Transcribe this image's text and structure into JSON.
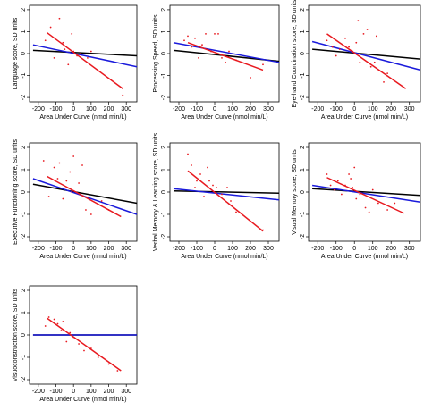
{
  "chart_data": [
    {
      "type": "scatter",
      "xlabel": "Area Under Curve (nmol min/L)",
      "ylabel": "Language score, SD units",
      "xlim": [
        -250,
        360
      ],
      "ylim": [
        -2.2,
        2.2
      ],
      "xticks": [
        -200,
        -100,
        0,
        100,
        200,
        300
      ],
      "yticks": [
        -2,
        -1,
        0,
        1,
        2
      ],
      "points": [
        [
          -160,
          0.6
        ],
        [
          -130,
          1.2
        ],
        [
          -110,
          -0.2
        ],
        [
          -80,
          1.6
        ],
        [
          -60,
          0.5
        ],
        [
          -50,
          0.2
        ],
        [
          -30,
          -0.5
        ],
        [
          -10,
          0.9
        ],
        [
          0,
          0.1
        ],
        [
          20,
          -0.1
        ],
        [
          40,
          0.0
        ],
        [
          80,
          -0.2
        ],
        [
          100,
          0.1
        ],
        [
          280,
          -1.9
        ]
      ],
      "series": [
        {
          "color": "#e8191f",
          "line": [
            [
              -150,
              0.95
            ],
            [
              280,
              -1.6
            ]
          ]
        },
        {
          "color": "#1a1adb",
          "line": [
            [
              -230,
              0.4
            ],
            [
              360,
              -0.6
            ]
          ]
        },
        {
          "color": "#000000",
          "line": [
            [
              -230,
              0.15
            ],
            [
              360,
              -0.1
            ]
          ]
        }
      ]
    },
    {
      "type": "scatter",
      "xlabel": "Area Under Curve (nmol min/L)",
      "ylabel": "Processing Speed, SD units",
      "xlim": [
        -250,
        360
      ],
      "ylim": [
        -2.2,
        2.2
      ],
      "xticks": [
        -200,
        -100,
        0,
        100,
        200,
        300
      ],
      "yticks": [
        -2,
        -1,
        0,
        1,
        2
      ],
      "points": [
        [
          -170,
          0.6
        ],
        [
          -150,
          0.8
        ],
        [
          -130,
          0.3
        ],
        [
          -110,
          0.7
        ],
        [
          -90,
          -0.2
        ],
        [
          -70,
          0.4
        ],
        [
          -50,
          0.9
        ],
        [
          -20,
          0.1
        ],
        [
          0,
          0.9
        ],
        [
          20,
          0.9
        ],
        [
          40,
          -0.2
        ],
        [
          60,
          -0.4
        ],
        [
          80,
          0.1
        ],
        [
          120,
          -0.3
        ],
        [
          200,
          -1.1
        ],
        [
          270,
          -0.5
        ]
      ],
      "series": [
        {
          "color": "#e8191f",
          "line": [
            [
              -150,
              0.5
            ],
            [
              270,
              -0.75
            ]
          ]
        },
        {
          "color": "#1a1adb",
          "line": [
            [
              -230,
              0.5
            ],
            [
              360,
              -0.4
            ]
          ]
        },
        {
          "color": "#000000",
          "line": [
            [
              -230,
              0.15
            ],
            [
              360,
              -0.35
            ]
          ]
        }
      ]
    },
    {
      "type": "scatter",
      "xlabel": "Area Under Curve (nmol min/L)",
      "ylabel": "Eye-hand Coordination score, SD units",
      "xlim": [
        -250,
        360
      ],
      "ylim": [
        -2.2,
        2.2
      ],
      "xticks": [
        -200,
        -100,
        0,
        100,
        200,
        300
      ],
      "yticks": [
        -2,
        -1,
        0,
        1,
        2
      ],
      "points": [
        [
          -150,
          0.6
        ],
        [
          -120,
          0.3
        ],
        [
          -100,
          -0.1
        ],
        [
          -80,
          0.2
        ],
        [
          -50,
          0.7
        ],
        [
          -30,
          0.3
        ],
        [
          -10,
          0.1
        ],
        [
          10,
          0.5
        ],
        [
          20,
          1.5
        ],
        [
          30,
          -0.4
        ],
        [
          50,
          0.9
        ],
        [
          70,
          1.1
        ],
        [
          90,
          -0.6
        ],
        [
          110,
          -0.4
        ],
        [
          120,
          0.8
        ],
        [
          160,
          -1.3
        ],
        [
          180,
          -0.9
        ]
      ],
      "series": [
        {
          "color": "#e8191f",
          "line": [
            [
              -150,
              0.9
            ],
            [
              280,
              -1.6
            ]
          ]
        },
        {
          "color": "#1a1adb",
          "line": [
            [
              -230,
              0.55
            ],
            [
              360,
              -0.75
            ]
          ]
        },
        {
          "color": "#000000",
          "line": [
            [
              -230,
              0.2
            ],
            [
              360,
              -0.25
            ]
          ]
        }
      ]
    },
    {
      "type": "scatter",
      "xlabel": "Area Under Curve (nmol min/L)",
      "ylabel": "Executive Functioning score, SD units",
      "xlim": [
        -250,
        360
      ],
      "ylim": [
        -2.2,
        2.2
      ],
      "xticks": [
        -200,
        -100,
        0,
        100,
        200,
        300
      ],
      "yticks": [
        -2,
        -1,
        0,
        1,
        2
      ],
      "points": [
        [
          -170,
          1.4
        ],
        [
          -150,
          0.2
        ],
        [
          -140,
          -0.2
        ],
        [
          -110,
          1.1
        ],
        [
          -90,
          0.6
        ],
        [
          -80,
          1.3
        ],
        [
          -60,
          -0.3
        ],
        [
          -40,
          0.5
        ],
        [
          -20,
          0.9
        ],
        [
          -10,
          0.0
        ],
        [
          0,
          1.6
        ],
        [
          30,
          0.4
        ],
        [
          50,
          1.2
        ],
        [
          70,
          -0.8
        ],
        [
          100,
          -1.0
        ],
        [
          160,
          -0.4
        ],
        [
          200,
          -0.8
        ]
      ],
      "series": [
        {
          "color": "#e8191f",
          "line": [
            [
              -150,
              0.7
            ],
            [
              270,
              -1.1
            ]
          ]
        },
        {
          "color": "#1a1adb",
          "line": [
            [
              -230,
              0.6
            ],
            [
              360,
              -1.0
            ]
          ]
        },
        {
          "color": "#000000",
          "line": [
            [
              -230,
              0.35
            ],
            [
              360,
              -0.5
            ]
          ]
        }
      ]
    },
    {
      "type": "scatter",
      "xlabel": "Area Under Curve (nmol min/L)",
      "ylabel": "Verbal Memory & Learning score, SD units",
      "xlim": [
        -250,
        360
      ],
      "ylim": [
        -2.2,
        2.2
      ],
      "xticks": [
        -200,
        -100,
        0,
        100,
        200,
        300
      ],
      "yticks": [
        -2,
        -1,
        0,
        1,
        2
      ],
      "points": [
        [
          -150,
          1.7
        ],
        [
          -130,
          1.2
        ],
        [
          -110,
          0.2
        ],
        [
          -100,
          0.5
        ],
        [
          -80,
          0.8
        ],
        [
          -60,
          -0.2
        ],
        [
          -40,
          1.1
        ],
        [
          -30,
          0.5
        ],
        [
          -10,
          0.3
        ],
        [
          10,
          0.2
        ],
        [
          40,
          -0.1
        ],
        [
          70,
          0.2
        ],
        [
          90,
          -0.4
        ],
        [
          120,
          -0.9
        ],
        [
          270,
          -1.7
        ]
      ],
      "series": [
        {
          "color": "#e8191f",
          "line": [
            [
              -150,
              0.95
            ],
            [
              270,
              -1.75
            ]
          ]
        },
        {
          "color": "#1a1adb",
          "line": [
            [
              -230,
              0.15
            ],
            [
              360,
              -0.35
            ]
          ]
        },
        {
          "color": "#000000",
          "line": [
            [
              -230,
              0.05
            ],
            [
              360,
              -0.05
            ]
          ]
        }
      ]
    },
    {
      "type": "scatter",
      "xlabel": "Area Under Curve (nmol min/L)",
      "ylabel": "Visual Memory score, SD units",
      "xlim": [
        -250,
        360
      ],
      "ylim": [
        -2.2,
        2.2
      ],
      "xticks": [
        -200,
        -100,
        0,
        100,
        200,
        300
      ],
      "yticks": [
        -2,
        -1,
        0,
        1,
        2
      ],
      "points": [
        [
          -150,
          0.8
        ],
        [
          -130,
          0.3
        ],
        [
          -110,
          0.1
        ],
        [
          -90,
          0.5
        ],
        [
          -70,
          -0.1
        ],
        [
          -50,
          0.3
        ],
        [
          -30,
          0.8
        ],
        [
          -20,
          0.6
        ],
        [
          -10,
          0.2
        ],
        [
          0,
          1.1
        ],
        [
          10,
          -0.3
        ],
        [
          30,
          -0.1
        ],
        [
          60,
          -0.7
        ],
        [
          80,
          -0.9
        ],
        [
          100,
          0.1
        ],
        [
          130,
          -0.5
        ],
        [
          180,
          -0.8
        ],
        [
          220,
          -0.5
        ]
      ],
      "series": [
        {
          "color": "#e8191f",
          "line": [
            [
              -150,
              0.65
            ],
            [
              270,
              -0.95
            ]
          ]
        },
        {
          "color": "#1a1adb",
          "line": [
            [
              -230,
              0.3
            ],
            [
              360,
              -0.45
            ]
          ]
        },
        {
          "color": "#000000",
          "line": [
            [
              -230,
              0.15
            ],
            [
              360,
              -0.15
            ]
          ]
        }
      ]
    },
    {
      "type": "scatter",
      "xlabel": "Area Under Curve (nmol min/L)",
      "ylabel": "Visuoconstruction score, SD units",
      "xlim": [
        -250,
        360
      ],
      "ylim": [
        -2.2,
        2.2
      ],
      "xticks": [
        -200,
        -100,
        0,
        100,
        200,
        300
      ],
      "yticks": [
        -2,
        -1,
        0,
        1,
        2
      ],
      "points": [
        [
          -160,
          0.4
        ],
        [
          -140,
          0.8
        ],
        [
          -110,
          0.7
        ],
        [
          -90,
          0.5
        ],
        [
          -70,
          0.2
        ],
        [
          -60,
          0.6
        ],
        [
          -40,
          -0.3
        ],
        [
          -20,
          0.1
        ],
        [
          0,
          -0.1
        ],
        [
          30,
          -0.4
        ],
        [
          60,
          -0.7
        ],
        [
          100,
          -0.6
        ],
        [
          140,
          -1.0
        ],
        [
          200,
          -1.3
        ],
        [
          250,
          -1.6
        ]
      ],
      "series": [
        {
          "color": "#e8191f",
          "line": [
            [
              -150,
              0.75
            ],
            [
              270,
              -1.6
            ]
          ]
        },
        {
          "color": "#1a1adb",
          "line": [
            [
              -230,
              0.0
            ],
            [
              360,
              0.0
            ]
          ]
        },
        {
          "color": "#000000",
          "line": [
            [
              -230,
              0.0
            ],
            [
              360,
              0.0
            ]
          ]
        }
      ]
    }
  ]
}
